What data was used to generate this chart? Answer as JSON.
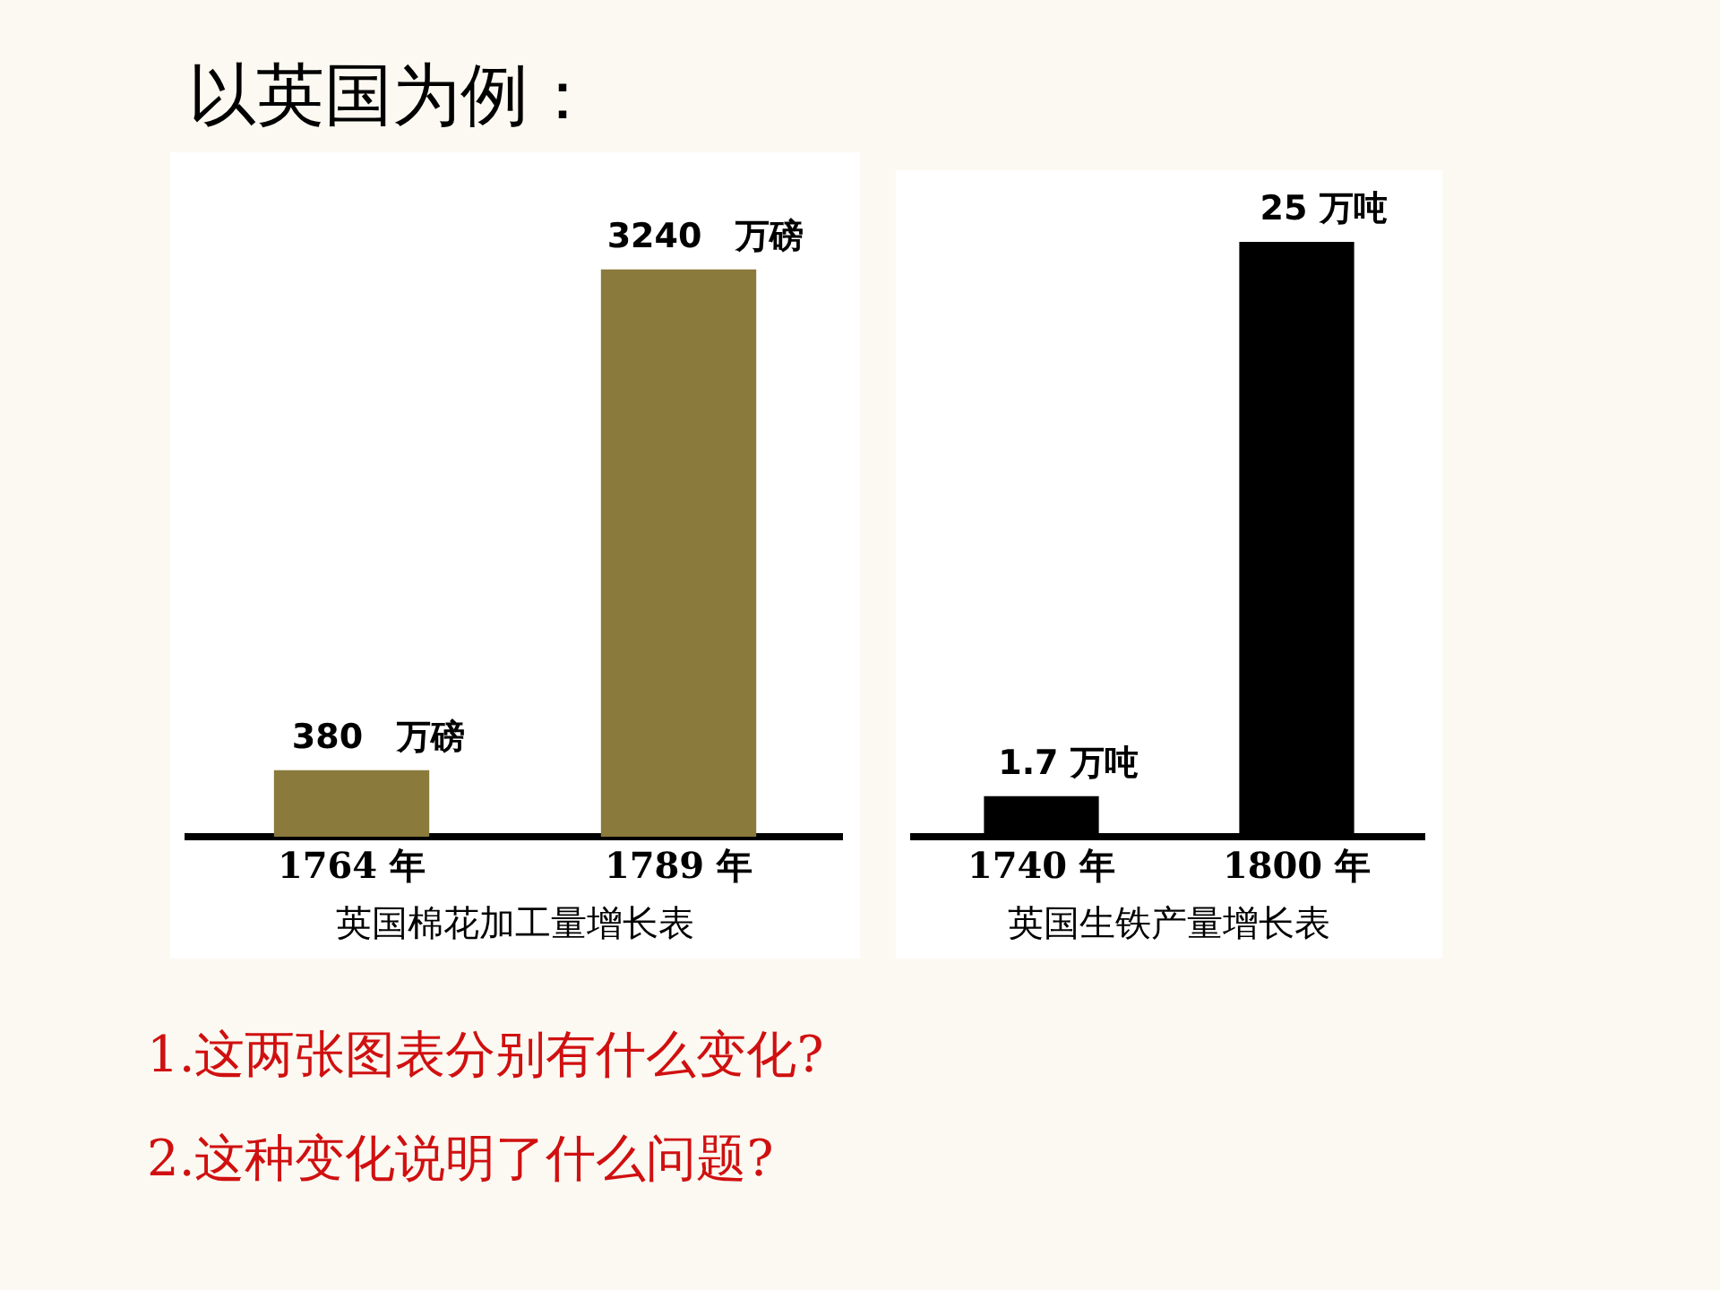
{
  "chart_data": [
    {
      "type": "bar",
      "title": "英国棉花加工量增长表",
      "categories": [
        "1764 年",
        "1789 年"
      ],
      "values": [
        380,
        3240
      ],
      "color": "#8a7a3c",
      "value_labels": [
        "380　万磅",
        "3240　万磅"
      ],
      "annotations": [
        "以英国为例："
      ]
    },
    {
      "type": "bar",
      "title": "英国生铁产量增长表",
      "categories": [
        "1740 年",
        "1800 年"
      ],
      "values": [
        1.7,
        25
      ],
      "color": "#000000",
      "value_labels": [
        "1.7 万吨",
        "25 万吨"
      ],
      "annotations": [
        "1.这两张图表分别有什么变化?",
        "2.这种变化说明了什么问题?"
      ]
    }
  ]
}
